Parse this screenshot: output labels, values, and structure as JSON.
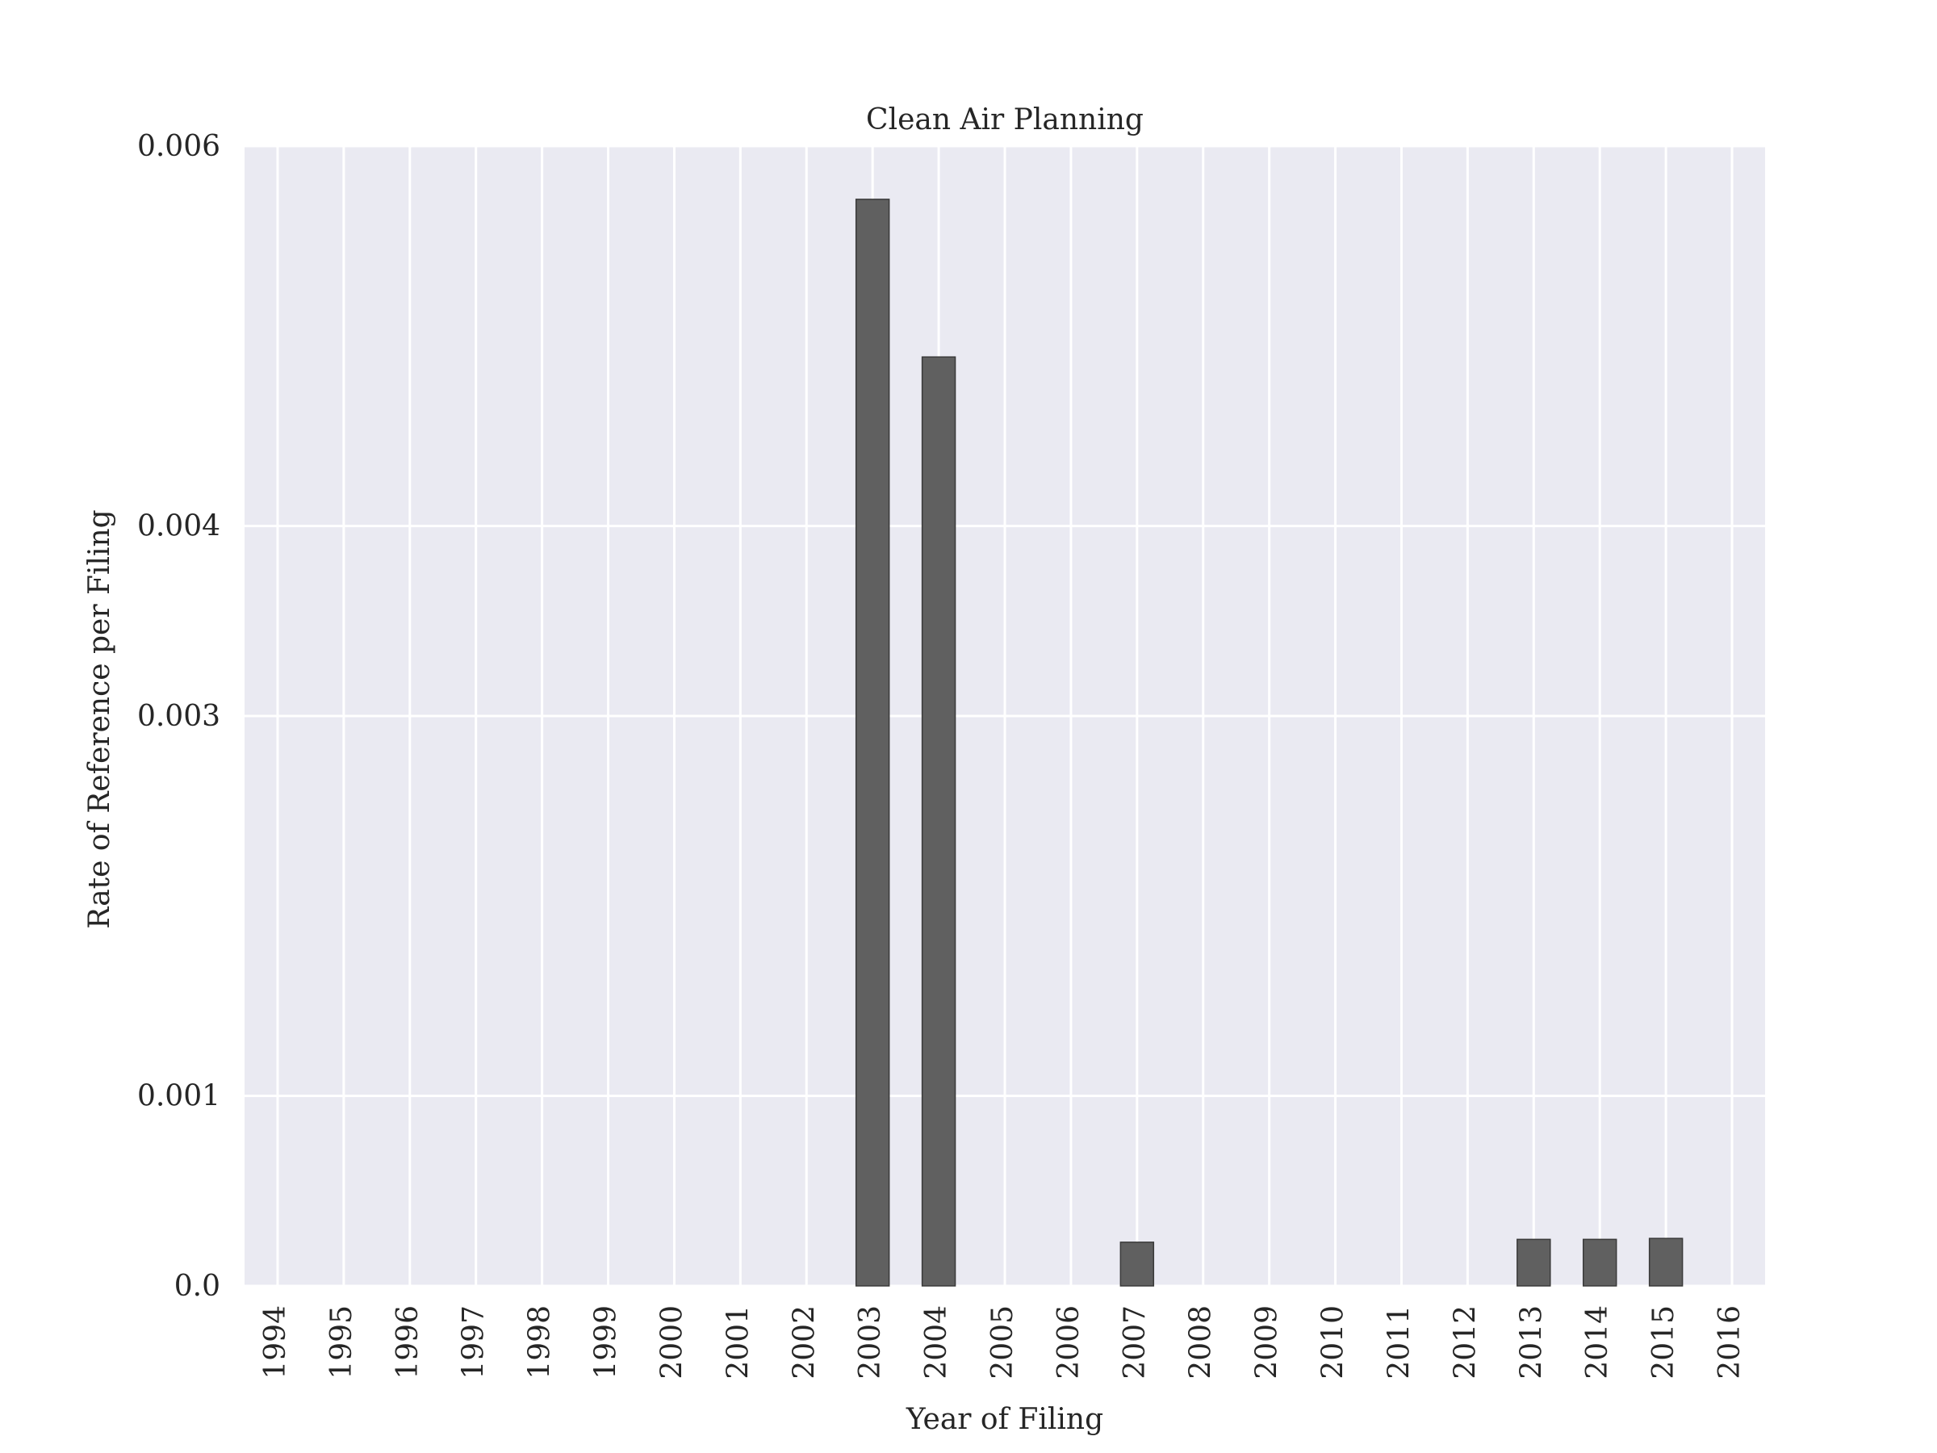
{
  "chart_data": {
    "type": "bar",
    "title": "Clean Air Planning",
    "xlabel": "Year of Filing",
    "ylabel": "Rate of Reference per Filing",
    "categories": [
      "1994",
      "1995",
      "1996",
      "1997",
      "1998",
      "1999",
      "2000",
      "2001",
      "2002",
      "2003",
      "2004",
      "2005",
      "2006",
      "2007",
      "2008",
      "2009",
      "2010",
      "2011",
      "2012",
      "2013",
      "2014",
      "2015",
      "2016"
    ],
    "values": [
      0,
      0,
      0,
      0,
      0,
      0,
      0,
      0,
      0,
      0.00572,
      0.00489,
      0,
      0,
      0.00023,
      0,
      0,
      0,
      0,
      0,
      0.000245,
      0.000245,
      0.00025,
      0
    ],
    "yticks": [
      0.0,
      0.001,
      0.003,
      0.004,
      0.006
    ],
    "ytick_labels": [
      "0.0",
      "0.001",
      "0.003",
      "0.004",
      "0.006"
    ],
    "ylim": [
      0,
      0.006
    ],
    "grid": true,
    "colors": {
      "background": "#eaeaf2",
      "bar": "#606060",
      "bar_edge": "#3a3a3a",
      "grid": "#ffffff"
    }
  }
}
